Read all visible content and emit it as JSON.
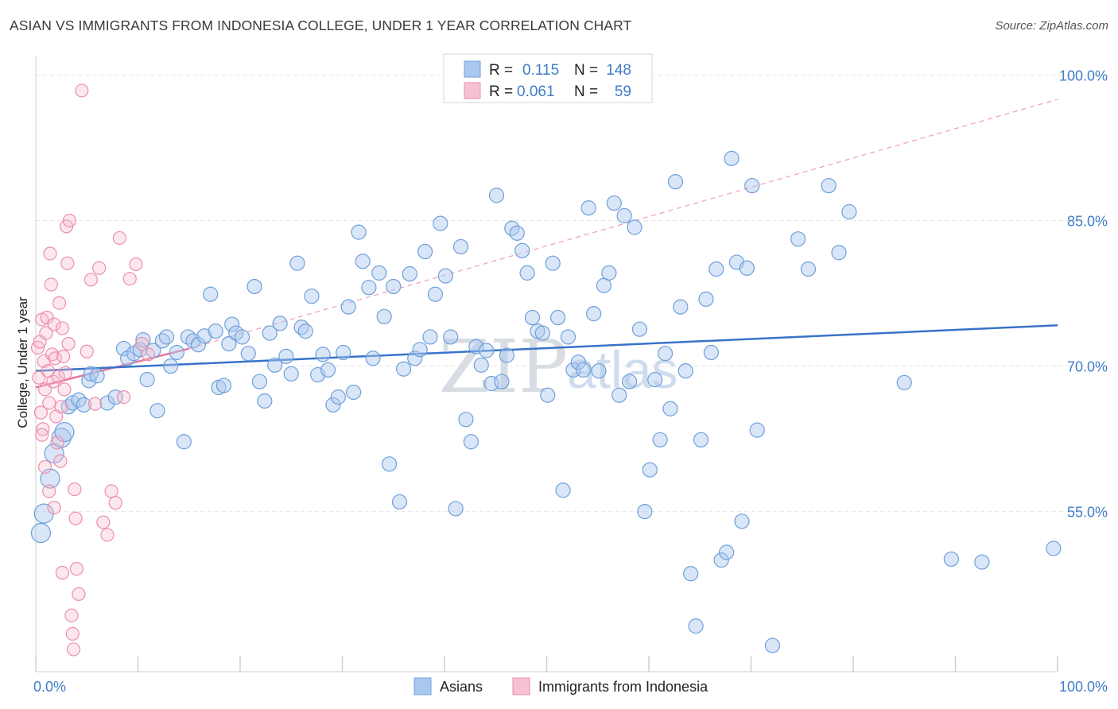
{
  "title": "ASIAN VS IMMIGRANTS FROM INDONESIA COLLEGE, UNDER 1 YEAR CORRELATION CHART",
  "source": "Source: ZipAtlas.com",
  "watermark": {
    "part1": "ZIP",
    "part2": "atlas"
  },
  "colors": {
    "blue": "#3f7dc9",
    "blue_fill": "#aac8ef",
    "pink": "#e8759b",
    "pink_fill": "#f6b9cc"
  },
  "legend": {
    "rows": [
      {
        "r_label": "R =",
        "r_value": "0.115",
        "n_label": "N =",
        "n_value": "148"
      },
      {
        "r_label": "R =",
        "r_value": "0.061",
        "n_label": "N =",
        "n_value": "59"
      }
    ]
  },
  "bottom_legend": [
    "Asians",
    "Immigrants from Indonesia"
  ],
  "chart_data": {
    "type": "scatter",
    "title": "ASIAN VS IMMIGRANTS FROM INDONESIA COLLEGE, UNDER 1 YEAR CORRELATION CHART",
    "xlabel": "",
    "ylabel": "College, Under 1 year",
    "xlim": [
      0,
      100
    ],
    "ylim": [
      38.5,
      102
    ],
    "x_tick_labels": [
      "0.0%",
      "100.0%"
    ],
    "y_ticks": [
      55.0,
      70.0,
      85.0,
      100.0
    ],
    "y_tick_labels": [
      "55.0%",
      "70.0%",
      "85.0%",
      "100.0%"
    ],
    "grid": true,
    "legend_position": "top-center",
    "series": [
      {
        "name": "Asians",
        "color": "#3f7dc9",
        "R": 0.115,
        "N": 148,
        "trend": {
          "x": [
            0,
            100
          ],
          "y": [
            69.5,
            74.2
          ]
        },
        "points": [
          [
            0.5,
            52.8
          ],
          [
            0.8,
            54.8
          ],
          [
            1.4,
            58.4
          ],
          [
            1.8,
            61.0
          ],
          [
            2.5,
            62.6
          ],
          [
            2.8,
            63.2
          ],
          [
            3.2,
            65.8
          ],
          [
            3.6,
            66.2
          ],
          [
            4.2,
            66.5
          ],
          [
            4.7,
            66.0
          ],
          [
            5.2,
            68.5
          ],
          [
            5.4,
            69.2
          ],
          [
            6.0,
            69.0
          ],
          [
            7.0,
            66.2
          ],
          [
            7.8,
            66.8
          ],
          [
            8.6,
            71.8
          ],
          [
            9.0,
            70.8
          ],
          [
            9.6,
            71.3
          ],
          [
            10.2,
            71.7
          ],
          [
            10.5,
            72.7
          ],
          [
            10.9,
            68.6
          ],
          [
            11.5,
            71.6
          ],
          [
            11.9,
            65.4
          ],
          [
            12.4,
            72.6
          ],
          [
            12.8,
            73.0
          ],
          [
            13.2,
            70.0
          ],
          [
            13.8,
            71.4
          ],
          [
            14.5,
            62.2
          ],
          [
            14.9,
            73.0
          ],
          [
            15.4,
            72.6
          ],
          [
            15.9,
            72.2
          ],
          [
            16.5,
            73.1
          ],
          [
            17.1,
            77.4
          ],
          [
            17.6,
            73.6
          ],
          [
            17.9,
            67.8
          ],
          [
            18.4,
            68.0
          ],
          [
            18.9,
            72.3
          ],
          [
            19.2,
            74.3
          ],
          [
            19.6,
            73.4
          ],
          [
            20.2,
            73.0
          ],
          [
            20.8,
            71.3
          ],
          [
            21.4,
            78.2
          ],
          [
            21.9,
            68.4
          ],
          [
            22.4,
            66.4
          ],
          [
            22.9,
            73.4
          ],
          [
            23.4,
            70.1
          ],
          [
            23.9,
            74.4
          ],
          [
            24.5,
            71.0
          ],
          [
            25.0,
            69.2
          ],
          [
            25.6,
            80.6
          ],
          [
            26.0,
            74.0
          ],
          [
            26.4,
            73.6
          ],
          [
            27.0,
            77.2
          ],
          [
            27.6,
            69.1
          ],
          [
            28.1,
            71.2
          ],
          [
            28.6,
            69.6
          ],
          [
            29.1,
            66.0
          ],
          [
            29.6,
            66.8
          ],
          [
            30.1,
            71.4
          ],
          [
            30.6,
            76.1
          ],
          [
            31.1,
            67.3
          ],
          [
            31.6,
            83.8
          ],
          [
            32.0,
            80.8
          ],
          [
            32.6,
            78.1
          ],
          [
            33.0,
            70.8
          ],
          [
            33.6,
            79.6
          ],
          [
            34.1,
            75.1
          ],
          [
            34.6,
            59.9
          ],
          [
            35.0,
            78.2
          ],
          [
            35.6,
            56.0
          ],
          [
            36.0,
            69.7
          ],
          [
            36.6,
            79.5
          ],
          [
            37.1,
            70.8
          ],
          [
            37.6,
            71.7
          ],
          [
            38.1,
            81.8
          ],
          [
            38.6,
            73.0
          ],
          [
            39.1,
            77.4
          ],
          [
            39.6,
            84.7
          ],
          [
            40.1,
            79.3
          ],
          [
            40.6,
            73.0
          ],
          [
            41.1,
            55.3
          ],
          [
            41.6,
            82.3
          ],
          [
            42.1,
            64.5
          ],
          [
            42.6,
            62.2
          ],
          [
            43.1,
            72.0
          ],
          [
            43.6,
            70.1
          ],
          [
            44.1,
            71.6
          ],
          [
            44.6,
            68.2
          ],
          [
            45.1,
            87.6
          ],
          [
            45.6,
            68.4
          ],
          [
            46.1,
            71.1
          ],
          [
            46.6,
            84.2
          ],
          [
            47.1,
            83.7
          ],
          [
            47.6,
            81.9
          ],
          [
            48.1,
            79.6
          ],
          [
            48.6,
            75.0
          ],
          [
            49.1,
            73.6
          ],
          [
            49.6,
            73.4
          ],
          [
            50.1,
            67.0
          ],
          [
            50.6,
            80.6
          ],
          [
            51.1,
            75.0
          ],
          [
            51.6,
            57.2
          ],
          [
            52.1,
            73.0
          ],
          [
            52.6,
            69.6
          ],
          [
            53.1,
            70.4
          ],
          [
            53.6,
            69.6
          ],
          [
            54.1,
            86.3
          ],
          [
            54.6,
            75.4
          ],
          [
            55.1,
            69.5
          ],
          [
            55.6,
            78.3
          ],
          [
            56.1,
            79.6
          ],
          [
            56.6,
            86.8
          ],
          [
            57.1,
            67.0
          ],
          [
            57.6,
            85.5
          ],
          [
            58.1,
            68.4
          ],
          [
            58.6,
            84.3
          ],
          [
            59.1,
            73.8
          ],
          [
            59.6,
            55.0
          ],
          [
            60.1,
            59.3
          ],
          [
            60.6,
            68.6
          ],
          [
            61.1,
            62.4
          ],
          [
            61.6,
            71.3
          ],
          [
            62.1,
            65.6
          ],
          [
            62.6,
            89.0
          ],
          [
            63.1,
            76.1
          ],
          [
            63.6,
            69.5
          ],
          [
            64.1,
            48.6
          ],
          [
            64.6,
            43.2
          ],
          [
            65.1,
            62.4
          ],
          [
            65.6,
            76.9
          ],
          [
            66.1,
            71.4
          ],
          [
            66.6,
            80.0
          ],
          [
            67.1,
            50.0
          ],
          [
            67.6,
            50.8
          ],
          [
            68.1,
            91.4
          ],
          [
            68.6,
            80.7
          ],
          [
            69.1,
            54.0
          ],
          [
            69.6,
            80.1
          ],
          [
            70.1,
            88.6
          ],
          [
            70.6,
            63.4
          ],
          [
            72.1,
            41.2
          ],
          [
            74.6,
            83.1
          ],
          [
            75.6,
            80.0
          ],
          [
            77.6,
            88.6
          ],
          [
            78.6,
            81.7
          ],
          [
            79.6,
            85.9
          ],
          [
            85.0,
            68.3
          ],
          [
            89.6,
            50.1
          ],
          [
            92.6,
            49.8
          ],
          [
            99.6,
            51.2
          ]
        ]
      },
      {
        "name": "Immigrants from Indonesia",
        "color": "#e8759b",
        "R": 0.061,
        "N": 59,
        "trend": {
          "x": [
            0,
            15
          ],
          "y": [
            67.8,
            71.8
          ]
        },
        "extended_trend": {
          "x": [
            15,
            100
          ],
          "y": [
            71.8,
            97.5
          ]
        },
        "points": [
          [
            0.2,
            71.9
          ],
          [
            0.3,
            68.8
          ],
          [
            0.4,
            72.5
          ],
          [
            0.5,
            65.2
          ],
          [
            0.6,
            74.8
          ],
          [
            0.7,
            63.5
          ],
          [
            0.8,
            70.5
          ],
          [
            0.9,
            67.6
          ],
          [
            1.0,
            73.4
          ],
          [
            1.1,
            75.0
          ],
          [
            1.2,
            69.5
          ],
          [
            1.3,
            66.2
          ],
          [
            1.4,
            81.6
          ],
          [
            1.5,
            78.4
          ],
          [
            1.6,
            71.2
          ],
          [
            1.7,
            68.4
          ],
          [
            1.8,
            74.3
          ],
          [
            1.9,
            70.8
          ],
          [
            2.0,
            64.8
          ],
          [
            2.1,
            62.1
          ],
          [
            2.2,
            68.9
          ],
          [
            2.3,
            76.5
          ],
          [
            2.4,
            60.2
          ],
          [
            2.5,
            65.8
          ],
          [
            2.6,
            73.9
          ],
          [
            2.7,
            71.0
          ],
          [
            2.8,
            67.6
          ],
          [
            2.9,
            69.3
          ],
          [
            3.0,
            84.4
          ],
          [
            3.1,
            80.6
          ],
          [
            3.2,
            72.3
          ],
          [
            3.3,
            85.0
          ],
          [
            3.5,
            44.3
          ],
          [
            3.6,
            42.4
          ],
          [
            3.7,
            40.8
          ],
          [
            3.8,
            57.3
          ],
          [
            3.9,
            54.3
          ],
          [
            4.0,
            49.1
          ],
          [
            4.2,
            46.5
          ],
          [
            4.5,
            98.4
          ],
          [
            5.0,
            71.5
          ],
          [
            5.4,
            78.9
          ],
          [
            5.8,
            66.1
          ],
          [
            6.2,
            80.1
          ],
          [
            6.6,
            53.9
          ],
          [
            7.0,
            52.6
          ],
          [
            7.4,
            57.1
          ],
          [
            7.8,
            55.9
          ],
          [
            8.2,
            83.2
          ],
          [
            8.6,
            66.8
          ],
          [
            9.2,
            79.0
          ],
          [
            9.8,
            80.5
          ],
          [
            10.4,
            72.3
          ],
          [
            11.0,
            71.2
          ],
          [
            1.3,
            57.1
          ],
          [
            0.9,
            59.6
          ],
          [
            1.8,
            55.4
          ],
          [
            2.6,
            48.7
          ],
          [
            0.6,
            62.9
          ]
        ]
      }
    ]
  }
}
